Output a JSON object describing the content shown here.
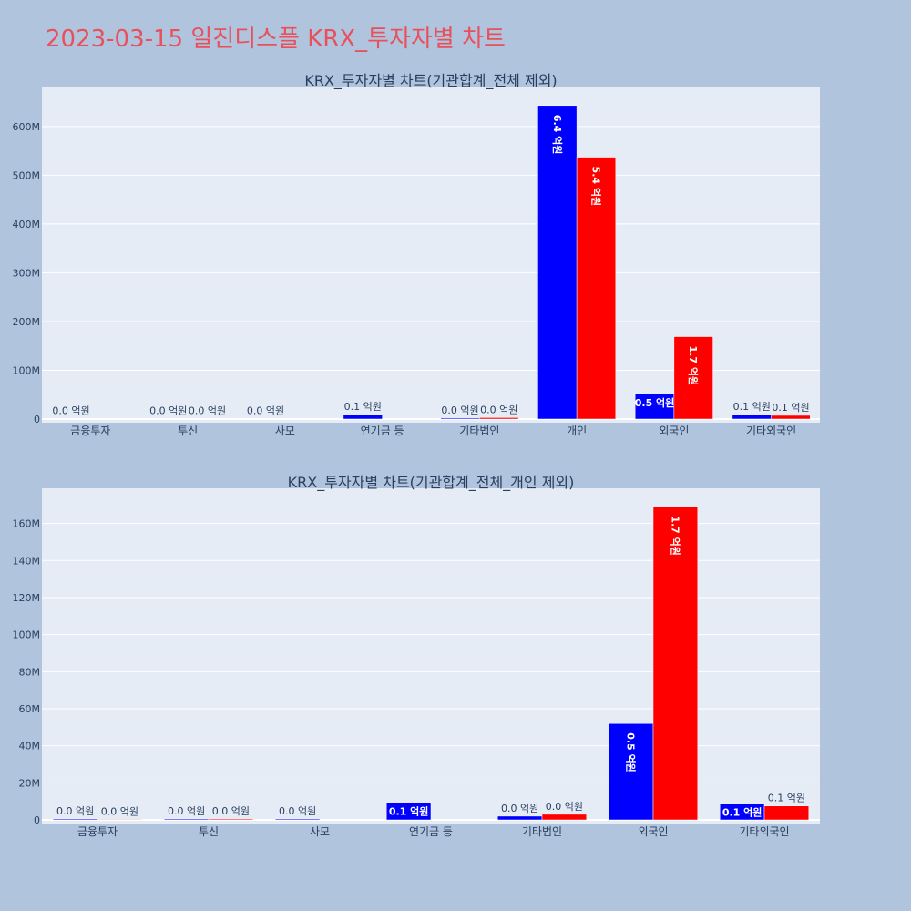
{
  "page": {
    "title": "2023-03-15 일진디스플 KRX_투자자별 차트"
  },
  "colors": {
    "background": "#b0c4de",
    "plot_bg": "#e5ecf6",
    "series_a": "#0000ff",
    "series_b": "#ff0000",
    "title": "#e8505b",
    "text": "#2a3f5f"
  },
  "chart_data": [
    {
      "type": "bar",
      "title": "KRX_투자자별 차트(기관합계_전체 제외)",
      "categories": [
        "금융투자",
        "투신",
        "사모",
        "연기금 등",
        "기타법인",
        "개인",
        "외국인",
        "기타외국인"
      ],
      "series": [
        {
          "values": [
            0.5,
            0.5,
            0.5,
            9.5,
            2.0,
            643,
            52,
            9.0
          ],
          "labels": [
            "0.0 억원",
            "0.0 억원",
            "0.0 억원",
            "0.1 억원",
            "0.0 억원",
            "6.4 억원",
            "0.5 억원",
            "0.1 억원"
          ]
        },
        {
          "values": [
            0.3,
            0.5,
            null,
            null,
            3.0,
            537,
            169,
            7.5
          ],
          "labels": [
            "",
            "0.0 억원",
            "",
            "",
            "0.0 억원",
            "5.4 억원",
            "1.7 억원",
            "0.1 억원"
          ]
        }
      ],
      "ylim": [
        0,
        680
      ],
      "yticks": [
        0,
        100,
        200,
        300,
        400,
        500,
        600
      ],
      "ytick_labels": [
        "0",
        "100M",
        "200M",
        "300M",
        "400M",
        "500M",
        "600M"
      ],
      "grid": true
    },
    {
      "type": "bar",
      "title": "KRX_투자자별 차트(기관합계_전체_개인 제외)",
      "categories": [
        "금융투자",
        "투신",
        "사모",
        "연기금 등",
        "기타법인",
        "외국인",
        "기타외국인"
      ],
      "series": [
        {
          "values": [
            0.5,
            0.5,
            0.5,
            9.5,
            2.0,
            52,
            9.0
          ],
          "labels": [
            "0.0 억원",
            "0.0 억원",
            "0.0 억원",
            "0.1 억원",
            "0.0 억원",
            "0.5 억원",
            "0.1 억원"
          ]
        },
        {
          "values": [
            0.3,
            0.5,
            null,
            null,
            3.0,
            169,
            7.5
          ],
          "labels": [
            "0.0 억원",
            "0.0 억원",
            "",
            "",
            "0.0 억원",
            "1.7 억원",
            "0.1 억원"
          ]
        }
      ],
      "ylim": [
        0,
        179
      ],
      "yticks": [
        0,
        20,
        40,
        60,
        80,
        100,
        120,
        140,
        160
      ],
      "ytick_labels": [
        "0",
        "20M",
        "40M",
        "60M",
        "80M",
        "100M",
        "120M",
        "140M",
        "160M"
      ],
      "grid": true
    }
  ]
}
